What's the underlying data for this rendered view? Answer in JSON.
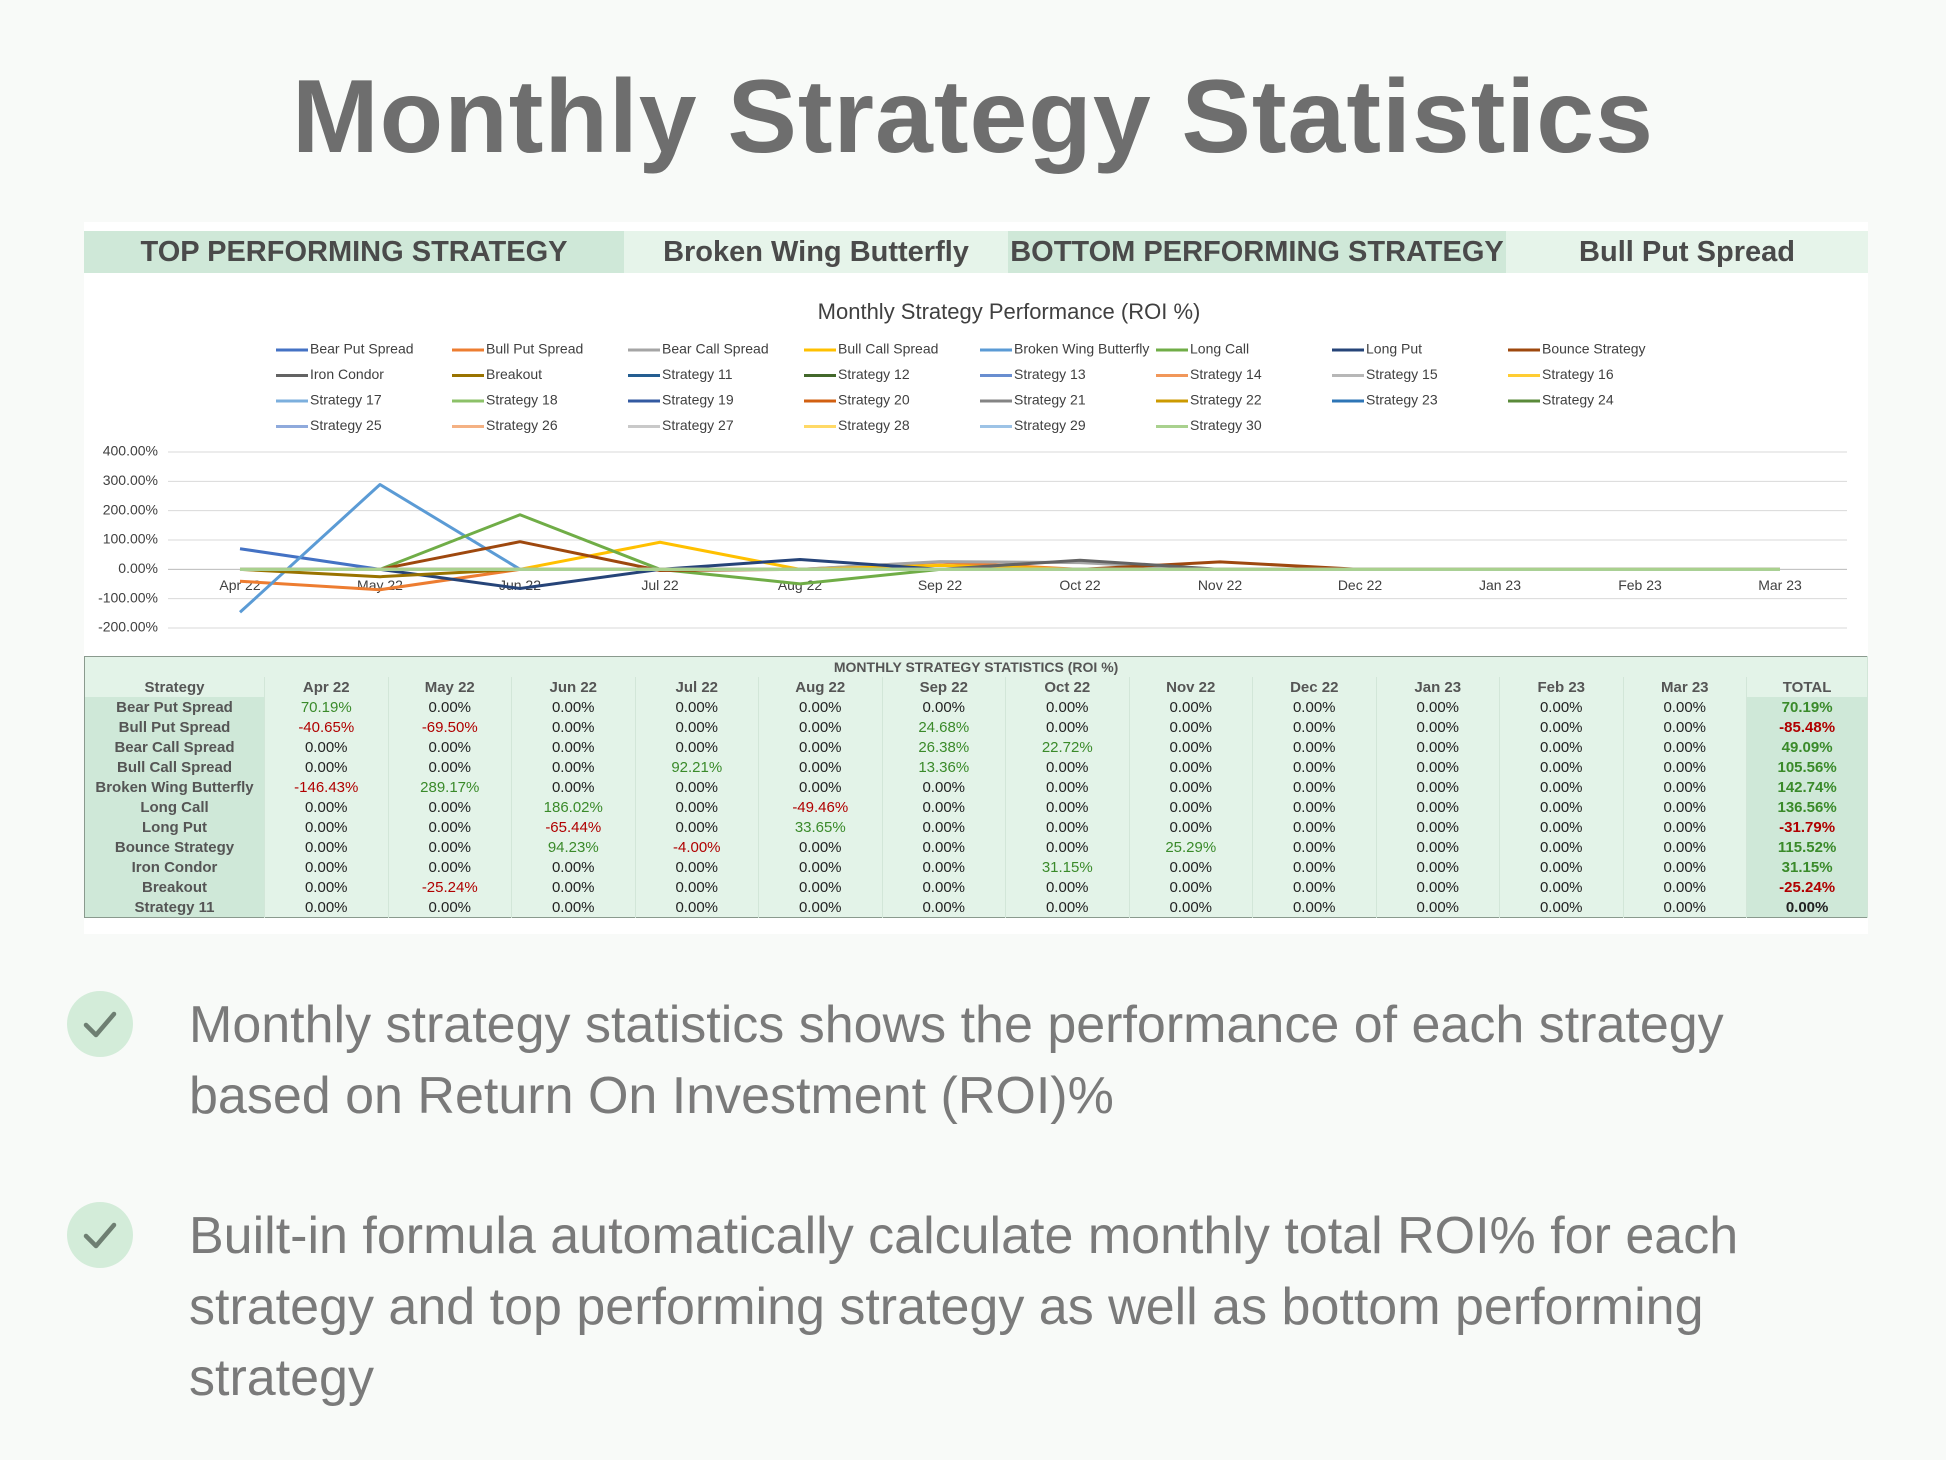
{
  "header": {
    "title": "Monthly Strategy Statistics"
  },
  "summary": {
    "top_label": "TOP PERFORMING STRATEGY",
    "top_value": "Broken Wing Butterfly",
    "bottom_label": "BOTTOM PERFORMING STRATEGY",
    "bottom_value": "Bull Put Spread"
  },
  "chart_data": {
    "type": "line",
    "title": "Monthly Strategy Performance (ROI %)",
    "categories": [
      "Apr 22",
      "May 22",
      "Jun 22",
      "Jul 22",
      "Aug 22",
      "Sep 22",
      "Oct 22",
      "Nov 22",
      "Dec 22",
      "Jan 23",
      "Feb 23",
      "Mar 23"
    ],
    "ylim": [
      -200,
      400
    ],
    "yticks": [
      {
        "value": -200,
        "label": "-200.00%"
      },
      {
        "value": -100,
        "label": "-100.00%"
      },
      {
        "value": 0,
        "label": "0.00%"
      },
      {
        "value": 100,
        "label": "100.00%"
      },
      {
        "value": 200,
        "label": "200.00%"
      },
      {
        "value": 300,
        "label": "300.00%"
      },
      {
        "value": 400,
        "label": "400.00%"
      }
    ],
    "grid": true,
    "series": [
      {
        "name": "Bear Put Spread",
        "color": "#4472c4",
        "values": [
          70.19,
          0,
          0,
          0,
          0,
          0,
          0,
          0,
          0,
          0,
          0,
          0
        ]
      },
      {
        "name": "Bull Put Spread",
        "color": "#ed7d31",
        "values": [
          -40.65,
          -69.5,
          0,
          0,
          0,
          24.68,
          0,
          0,
          0,
          0,
          0,
          0
        ]
      },
      {
        "name": "Bear Call Spread",
        "color": "#a5a5a5",
        "values": [
          0,
          0,
          0,
          0,
          0,
          26.38,
          22.72,
          0,
          0,
          0,
          0,
          0
        ]
      },
      {
        "name": "Bull Call Spread",
        "color": "#ffc000",
        "values": [
          0,
          0,
          0,
          92.21,
          0,
          13.36,
          0,
          0,
          0,
          0,
          0,
          0
        ]
      },
      {
        "name": "Broken Wing Butterfly",
        "color": "#5b9bd5",
        "values": [
          -146.43,
          289.17,
          0,
          0,
          0,
          0,
          0,
          0,
          0,
          0,
          0,
          0
        ]
      },
      {
        "name": "Long Call",
        "color": "#70ad47",
        "values": [
          0,
          0,
          186.02,
          0,
          -49.46,
          0,
          0,
          0,
          0,
          0,
          0,
          0
        ]
      },
      {
        "name": "Long Put",
        "color": "#264478",
        "values": [
          0,
          0,
          -65.44,
          0,
          33.65,
          0,
          0,
          0,
          0,
          0,
          0,
          0
        ]
      },
      {
        "name": "Bounce Strategy",
        "color": "#9e480e",
        "values": [
          0,
          0,
          94.23,
          -4,
          0,
          0,
          0,
          25.29,
          0,
          0,
          0,
          0
        ]
      },
      {
        "name": "Iron Condor",
        "color": "#636363",
        "values": [
          0,
          0,
          0,
          0,
          0,
          0,
          31.15,
          0,
          0,
          0,
          0,
          0
        ]
      },
      {
        "name": "Breakout",
        "color": "#997300",
        "values": [
          0,
          -25.24,
          0,
          0,
          0,
          0,
          0,
          0,
          0,
          0,
          0,
          0
        ]
      },
      {
        "name": "Strategy 11",
        "color": "#255e91",
        "values": [
          0,
          0,
          0,
          0,
          0,
          0,
          0,
          0,
          0,
          0,
          0,
          0
        ]
      },
      {
        "name": "Strategy 12",
        "color": "#43682b",
        "values": [
          0,
          0,
          0,
          0,
          0,
          0,
          0,
          0,
          0,
          0,
          0,
          0
        ]
      },
      {
        "name": "Strategy 13",
        "color": "#698ed0",
        "values": [
          0,
          0,
          0,
          0,
          0,
          0,
          0,
          0,
          0,
          0,
          0,
          0
        ]
      },
      {
        "name": "Strategy 14",
        "color": "#f1975a",
        "values": [
          0,
          0,
          0,
          0,
          0,
          0,
          0,
          0,
          0,
          0,
          0,
          0
        ]
      },
      {
        "name": "Strategy 15",
        "color": "#b7b7b7",
        "values": [
          0,
          0,
          0,
          0,
          0,
          0,
          0,
          0,
          0,
          0,
          0,
          0
        ]
      },
      {
        "name": "Strategy 16",
        "color": "#ffcd33",
        "values": [
          0,
          0,
          0,
          0,
          0,
          0,
          0,
          0,
          0,
          0,
          0,
          0
        ]
      },
      {
        "name": "Strategy 17",
        "color": "#7cafdd",
        "values": [
          0,
          0,
          0,
          0,
          0,
          0,
          0,
          0,
          0,
          0,
          0,
          0
        ]
      },
      {
        "name": "Strategy 18",
        "color": "#8cc168",
        "values": [
          0,
          0,
          0,
          0,
          0,
          0,
          0,
          0,
          0,
          0,
          0,
          0
        ]
      },
      {
        "name": "Strategy 19",
        "color": "#335aa1",
        "values": [
          0,
          0,
          0,
          0,
          0,
          0,
          0,
          0,
          0,
          0,
          0,
          0
        ]
      },
      {
        "name": "Strategy 20",
        "color": "#d26012",
        "values": [
          0,
          0,
          0,
          0,
          0,
          0,
          0,
          0,
          0,
          0,
          0,
          0
        ]
      },
      {
        "name": "Strategy 21",
        "color": "#848484",
        "values": [
          0,
          0,
          0,
          0,
          0,
          0,
          0,
          0,
          0,
          0,
          0,
          0
        ]
      },
      {
        "name": "Strategy 22",
        "color": "#cc9a00",
        "values": [
          0,
          0,
          0,
          0,
          0,
          0,
          0,
          0,
          0,
          0,
          0,
          0
        ]
      },
      {
        "name": "Strategy 23",
        "color": "#2e75b6",
        "values": [
          0,
          0,
          0,
          0,
          0,
          0,
          0,
          0,
          0,
          0,
          0,
          0
        ]
      },
      {
        "name": "Strategy 24",
        "color": "#5a8a39",
        "values": [
          0,
          0,
          0,
          0,
          0,
          0,
          0,
          0,
          0,
          0,
          0,
          0
        ]
      },
      {
        "name": "Strategy 25",
        "color": "#8faadc",
        "values": [
          0,
          0,
          0,
          0,
          0,
          0,
          0,
          0,
          0,
          0,
          0,
          0
        ]
      },
      {
        "name": "Strategy 26",
        "color": "#f4b183",
        "values": [
          0,
          0,
          0,
          0,
          0,
          0,
          0,
          0,
          0,
          0,
          0,
          0
        ]
      },
      {
        "name": "Strategy 27",
        "color": "#c9c9c9",
        "values": [
          0,
          0,
          0,
          0,
          0,
          0,
          0,
          0,
          0,
          0,
          0,
          0
        ]
      },
      {
        "name": "Strategy 28",
        "color": "#ffd966",
        "values": [
          0,
          0,
          0,
          0,
          0,
          0,
          0,
          0,
          0,
          0,
          0,
          0
        ]
      },
      {
        "name": "Strategy 29",
        "color": "#9dc3e6",
        "values": [
          0,
          0,
          0,
          0,
          0,
          0,
          0,
          0,
          0,
          0,
          0,
          0
        ]
      },
      {
        "name": "Strategy 30",
        "color": "#a9d18e",
        "values": [
          0,
          0,
          0,
          0,
          0,
          0,
          0,
          0,
          0,
          0,
          0,
          0
        ]
      }
    ]
  },
  "table": {
    "title": "MONTHLY STRATEGY STATISTICS (ROI %)",
    "columns": [
      "Strategy",
      "Apr 22",
      "May 22",
      "Jun 22",
      "Jul 22",
      "Aug 22",
      "Sep 22",
      "Oct 22",
      "Nov 22",
      "Dec 22",
      "Jan 23",
      "Feb 23",
      "Mar 23",
      "TOTAL"
    ],
    "rows": [
      [
        "Bear Put Spread",
        "70.19%",
        "0.00%",
        "0.00%",
        "0.00%",
        "0.00%",
        "0.00%",
        "0.00%",
        "0.00%",
        "0.00%",
        "0.00%",
        "0.00%",
        "0.00%",
        "70.19%"
      ],
      [
        "Bull Put Spread",
        "-40.65%",
        "-69.50%",
        "0.00%",
        "0.00%",
        "0.00%",
        "24.68%",
        "0.00%",
        "0.00%",
        "0.00%",
        "0.00%",
        "0.00%",
        "0.00%",
        "-85.48%"
      ],
      [
        "Bear Call Spread",
        "0.00%",
        "0.00%",
        "0.00%",
        "0.00%",
        "0.00%",
        "26.38%",
        "22.72%",
        "0.00%",
        "0.00%",
        "0.00%",
        "0.00%",
        "0.00%",
        "49.09%"
      ],
      [
        "Bull Call Spread",
        "0.00%",
        "0.00%",
        "0.00%",
        "92.21%",
        "0.00%",
        "13.36%",
        "0.00%",
        "0.00%",
        "0.00%",
        "0.00%",
        "0.00%",
        "0.00%",
        "105.56%"
      ],
      [
        "Broken Wing Butterfly",
        "-146.43%",
        "289.17%",
        "0.00%",
        "0.00%",
        "0.00%",
        "0.00%",
        "0.00%",
        "0.00%",
        "0.00%",
        "0.00%",
        "0.00%",
        "0.00%",
        "142.74%"
      ],
      [
        "Long Call",
        "0.00%",
        "0.00%",
        "186.02%",
        "0.00%",
        "-49.46%",
        "0.00%",
        "0.00%",
        "0.00%",
        "0.00%",
        "0.00%",
        "0.00%",
        "0.00%",
        "136.56%"
      ],
      [
        "Long Put",
        "0.00%",
        "0.00%",
        "-65.44%",
        "0.00%",
        "33.65%",
        "0.00%",
        "0.00%",
        "0.00%",
        "0.00%",
        "0.00%",
        "0.00%",
        "0.00%",
        "-31.79%"
      ],
      [
        "Bounce Strategy",
        "0.00%",
        "0.00%",
        "94.23%",
        "-4.00%",
        "0.00%",
        "0.00%",
        "0.00%",
        "25.29%",
        "0.00%",
        "0.00%",
        "0.00%",
        "0.00%",
        "115.52%"
      ],
      [
        "Iron Condor",
        "0.00%",
        "0.00%",
        "0.00%",
        "0.00%",
        "0.00%",
        "0.00%",
        "31.15%",
        "0.00%",
        "0.00%",
        "0.00%",
        "0.00%",
        "0.00%",
        "31.15%"
      ],
      [
        "Breakout",
        "0.00%",
        "-25.24%",
        "0.00%",
        "0.00%",
        "0.00%",
        "0.00%",
        "0.00%",
        "0.00%",
        "0.00%",
        "0.00%",
        "0.00%",
        "0.00%",
        "-25.24%"
      ],
      [
        "Strategy 11",
        "0.00%",
        "0.00%",
        "0.00%",
        "0.00%",
        "0.00%",
        "0.00%",
        "0.00%",
        "0.00%",
        "0.00%",
        "0.00%",
        "0.00%",
        "0.00%",
        "0.00%"
      ]
    ]
  },
  "bullets": [
    "Monthly strategy statistics shows the performance of each strategy based on Return On Investment (ROI)%",
    "Built-in formula automatically calculate monthly total ROI% for each strategy and top performing strategy as well as bottom performing strategy"
  ]
}
